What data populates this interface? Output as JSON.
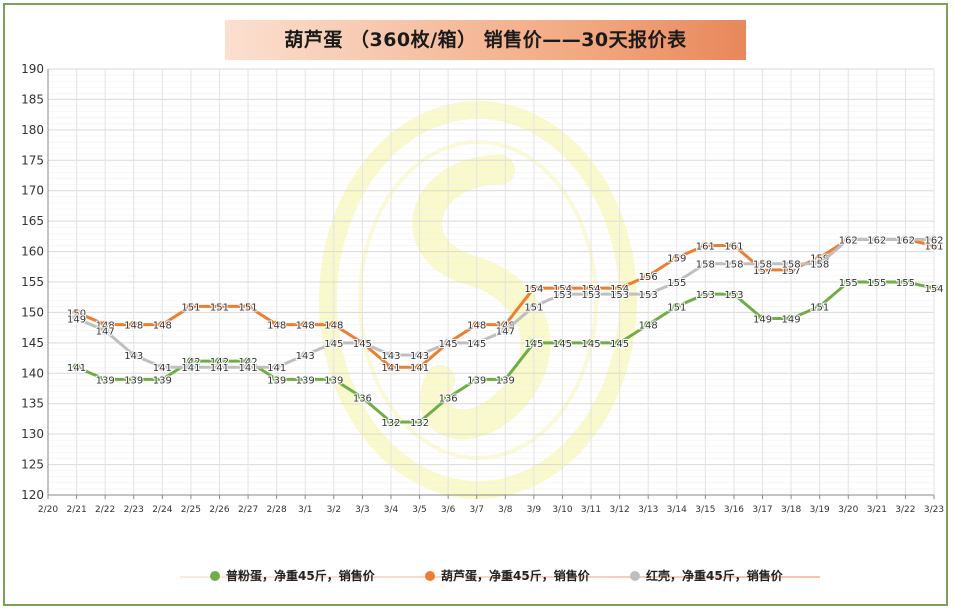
{
  "chart_data": {
    "type": "line",
    "title": "葫芦蛋 （360枚/箱） 销售价——30天报价表",
    "xlabel": "",
    "ylabel": "",
    "ylim": [
      120,
      190
    ],
    "yticks": [
      120,
      125,
      130,
      135,
      140,
      145,
      150,
      155,
      160,
      165,
      170,
      175,
      180,
      185,
      190
    ],
    "grid": true,
    "legend_position": "bottom",
    "categories": [
      "2/20",
      "2/21",
      "2/22",
      "2/23",
      "2/24",
      "2/25",
      "2/26",
      "2/27",
      "2/28",
      "3/1",
      "3/2",
      "3/3",
      "3/4",
      "3/5",
      "3/6",
      "3/7",
      "3/8",
      "3/9",
      "3/10",
      "3/11",
      "3/12",
      "3/13",
      "3/14",
      "3/15",
      "3/16",
      "3/17",
      "3/18",
      "3/19",
      "3/20",
      "3/21",
      "3/22",
      "3/23"
    ],
    "series": [
      {
        "name": "普粉蛋，净重45斤，销售价",
        "color": "#70ad47",
        "values": [
          null,
          141,
          139,
          139,
          139,
          142,
          142,
          142,
          139,
          139,
          139,
          136,
          132,
          132,
          136,
          139,
          139,
          145,
          145,
          145,
          145,
          148,
          151,
          153,
          153,
          149,
          149,
          151,
          155,
          155,
          155,
          154
        ]
      },
      {
        "name": "葫芦蛋，净重45斤，销售价",
        "color": "#ed7d31",
        "values": [
          null,
          150,
          148,
          148,
          148,
          151,
          151,
          151,
          148,
          148,
          148,
          145,
          141,
          141,
          145,
          148,
          148,
          154,
          154,
          154,
          154,
          156,
          159,
          161,
          161,
          157,
          157,
          159,
          162,
          162,
          162,
          161
        ]
      },
      {
        "name": "红壳，净重45斤，销售价",
        "color": "#bfbfbf",
        "values": [
          null,
          149,
          147,
          143,
          141,
          141,
          141,
          141,
          141,
          143,
          145,
          145,
          143,
          143,
          145,
          145,
          147,
          151,
          153,
          153,
          153,
          153,
          155,
          158,
          158,
          158,
          158,
          158,
          162,
          162,
          162,
          162
        ]
      }
    ]
  }
}
